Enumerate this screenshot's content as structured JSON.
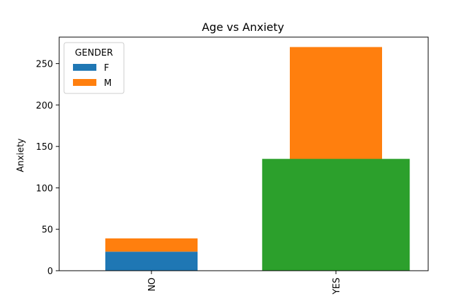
{
  "chart_data": {
    "type": "bar",
    "title": "Age vs Anxiety",
    "xlabel": "",
    "ylabel": "Anxiety",
    "categories": [
      "NO",
      "YES"
    ],
    "ylim": [
      0,
      282
    ],
    "yticks": [
      0,
      50,
      100,
      150,
      200,
      250
    ],
    "grid": false,
    "legend": {
      "title": "GENDER",
      "placement": "top-left",
      "entries": [
        {
          "name": "F",
          "color": "#1f77b4"
        },
        {
          "name": "M",
          "color": "#ff7f0e"
        }
      ]
    },
    "stacked_series": [
      {
        "name": "F",
        "color": "#1f77b4",
        "values": [
          23,
          0
        ]
      },
      {
        "name": "M",
        "color": "#ff7f0e",
        "values": [
          16,
          270
        ]
      }
    ],
    "overlay_bar": {
      "category": "YES",
      "value": 135,
      "color": "#2ca02c"
    }
  }
}
